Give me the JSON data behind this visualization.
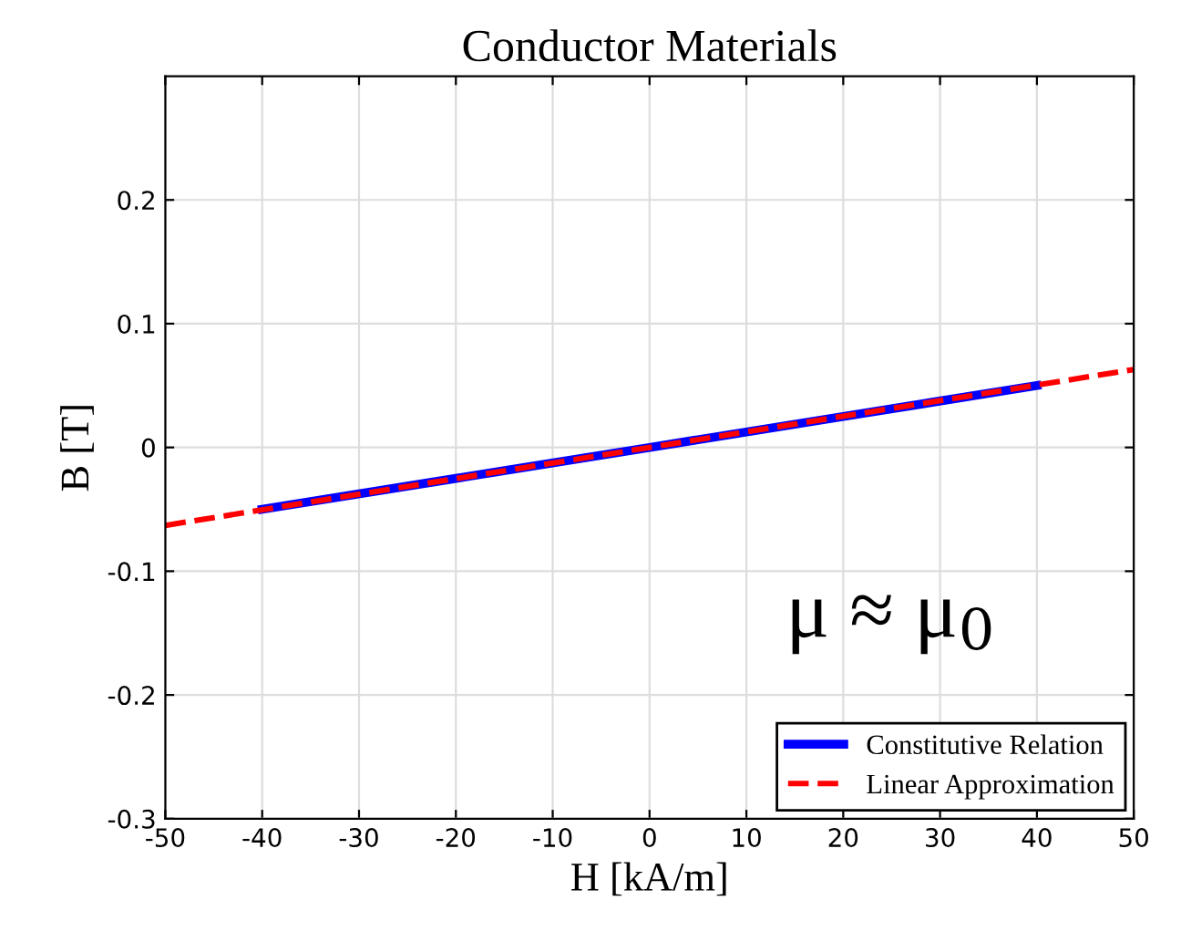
{
  "chart_data": {
    "type": "line",
    "title": "Conductor Materials",
    "xlabel": "H [kA/m]",
    "ylabel": "B [T]",
    "series": [
      {
        "name": "Constitutive Relation",
        "color": "#0000ff",
        "x": [
          -40,
          -20,
          0,
          20,
          40
        ],
        "values": [
          -0.05,
          -0.025,
          0,
          0.025,
          0.05
        ],
        "line_style": "solid"
      },
      {
        "name": "Linear Approximation",
        "color": "#ff0000",
        "x": [
          -50,
          0,
          50
        ],
        "values": [
          -0.063,
          0,
          0.063
        ],
        "line_style": "dashed"
      }
    ],
    "xlim": [
      -50,
      50
    ],
    "xticks": [
      -50,
      -40,
      -30,
      -20,
      -10,
      0,
      10,
      20,
      30,
      40,
      50
    ],
    "ylim": [
      -0.3,
      0.3
    ],
    "yticks": [
      -0.3,
      -0.2,
      -0.1,
      0,
      0.1,
      0.2
    ],
    "annotations": [
      {
        "text": "μ ≈ μ$_{0}$"
      }
    ],
    "grid": true,
    "legend": "bottom right"
  }
}
